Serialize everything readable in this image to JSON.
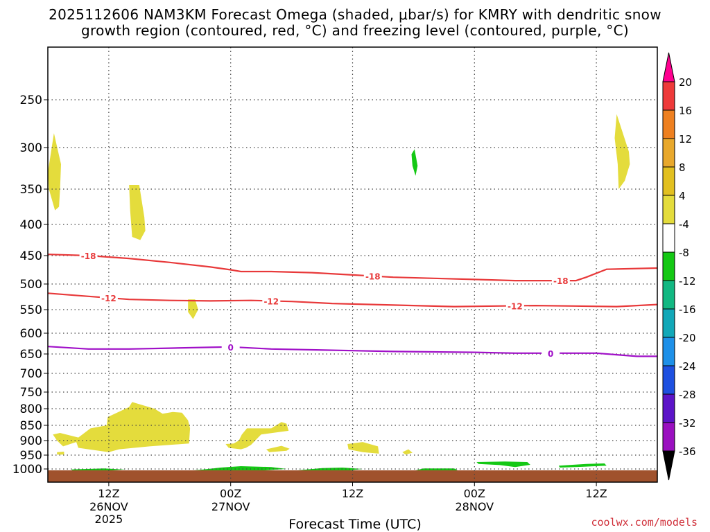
{
  "header": {
    "title_line1": "2025112606 NAM3KM Forecast Omega (shaded, μbar/s) for KMRY with dendritic snow",
    "title_line2": "growth region (contoured, red, °C) and freezing level (contoured, purple, °C)"
  },
  "footer": {
    "credit": "coolwx.com/models",
    "xlabel": "Forecast Time (UTC)"
  },
  "chart_data": {
    "type": "contour-shaded",
    "title": "2025112606 NAM3KM Forecast Omega (shaded, μbar/s) for KMRY with dendritic snow growth region (contoured, red, °C) and freezing level (contoured, purple, °C)",
    "xlabel": "Forecast Time (UTC)",
    "ylabel": "",
    "x_range_hours_utc": [
      "2025-11-26 06Z",
      "2025-11-28 18Z"
    ],
    "x_ticks": [
      {
        "label": "12Z",
        "sub": "26NOV",
        "sub2": "2025",
        "hour": 6
      },
      {
        "label": "00Z",
        "sub": "27NOV",
        "sub2": "",
        "hour": 18
      },
      {
        "label": "12Z",
        "sub": "",
        "sub2": "",
        "hour": 30
      },
      {
        "label": "00Z",
        "sub": "28NOV",
        "sub2": "",
        "hour": 42
      },
      {
        "label": "12Z",
        "sub": "",
        "sub2": "",
        "hour": 54
      }
    ],
    "y_ticks_hpa": [
      250,
      300,
      350,
      400,
      450,
      500,
      550,
      600,
      650,
      700,
      750,
      800,
      850,
      900,
      950,
      1000
    ],
    "y_range_hpa": [
      1020,
      200
    ],
    "grid": true,
    "colorbar": {
      "ticks": [
        20,
        16,
        12,
        8,
        4,
        -4,
        -8,
        -12,
        -16,
        -20,
        -24,
        -28,
        -32,
        -36
      ],
      "colors": [
        "#ff0090",
        "#ee3a3a",
        "#ee8020",
        "#e8a82c",
        "#e2c020",
        "#e4dc3c",
        "#ffffff",
        "#14c814",
        "#12b882",
        "#12a8b8",
        "#1e90e8",
        "#1e50e0",
        "#5c14c8",
        "#9a10c0",
        "#a0a0a0",
        "#000000"
      ]
    },
    "contours": [
      {
        "name": "-18",
        "color": "#e8393a",
        "points": [
          [
            0,
            448
          ],
          [
            4,
            450
          ],
          [
            8,
            455
          ],
          [
            12,
            462
          ],
          [
            16,
            470
          ],
          [
            18,
            475
          ],
          [
            19,
            478
          ],
          [
            22,
            478
          ],
          [
            26,
            480
          ],
          [
            30,
            484
          ],
          [
            34,
            488
          ],
          [
            38,
            490
          ],
          [
            42,
            492
          ],
          [
            46,
            494
          ],
          [
            50,
            494
          ],
          [
            52,
            494
          ],
          [
            53,
            488
          ],
          [
            55,
            474
          ],
          [
            60,
            472
          ]
        ],
        "label_hours": [
          4,
          32,
          50.5
        ]
      },
      {
        "name": "-12",
        "color": "#e8393a",
        "points": [
          [
            0,
            518
          ],
          [
            4,
            524
          ],
          [
            8,
            530
          ],
          [
            12,
            532
          ],
          [
            16,
            533
          ],
          [
            20,
            532
          ],
          [
            24,
            534
          ],
          [
            28,
            538
          ],
          [
            32,
            540
          ],
          [
            36,
            542
          ],
          [
            40,
            544
          ],
          [
            44,
            543
          ],
          [
            48,
            542
          ],
          [
            52,
            543
          ],
          [
            56,
            544
          ],
          [
            60,
            540
          ]
        ],
        "label_hours": [
          6,
          22,
          46
        ]
      },
      {
        "name": "0",
        "color": "#a010c8",
        "points": [
          [
            0,
            632
          ],
          [
            4,
            638
          ],
          [
            8,
            638
          ],
          [
            12,
            636
          ],
          [
            16,
            634
          ],
          [
            18,
            633
          ],
          [
            22,
            638
          ],
          [
            26,
            640
          ],
          [
            30,
            642
          ],
          [
            34,
            644
          ],
          [
            38,
            645
          ],
          [
            42,
            646
          ],
          [
            46,
            648
          ],
          [
            50,
            648
          ],
          [
            54,
            648
          ],
          [
            56,
            652
          ],
          [
            58,
            656
          ],
          [
            60,
            656
          ]
        ],
        "label_hours": [
          18,
          49.5
        ]
      }
    ]
  }
}
